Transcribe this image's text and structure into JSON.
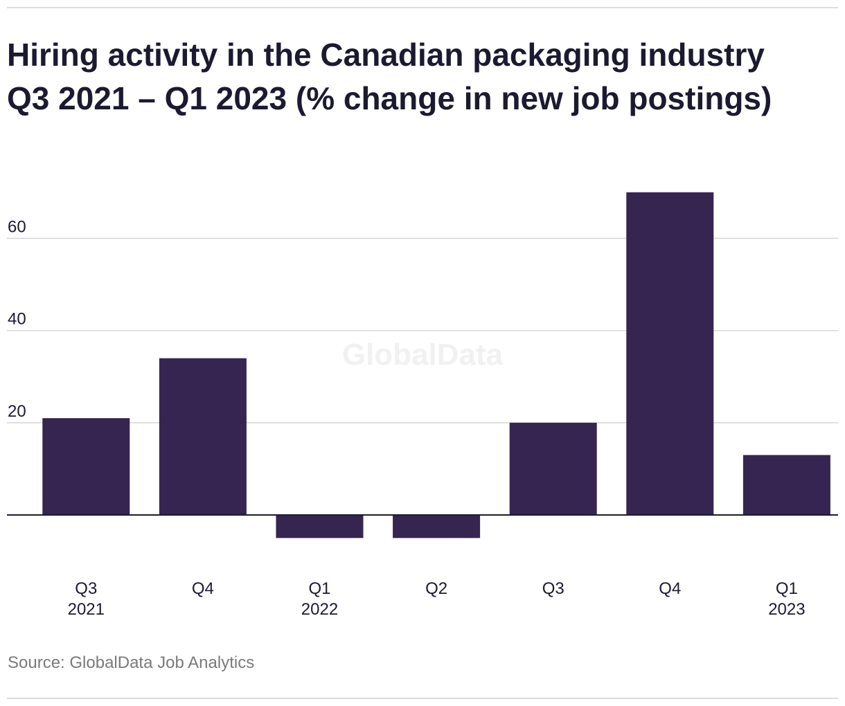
{
  "title_line1": "Hiring activity in the Canadian packaging industry",
  "title_line2": "Q3 2021 – Q1 2023 (% change in new job postings)",
  "watermark": "GlobalData",
  "source": "Source: GlobalData Job Analytics",
  "colors": {
    "bar": "#352550",
    "grid": "#d6d6d6",
    "zero_line": "#1b1a30",
    "tick_text": "#1c1a33",
    "watermark": "#f1f1f1"
  },
  "chart_data": {
    "type": "bar",
    "categories": [
      [
        "Q3",
        "2021"
      ],
      [
        "Q4"
      ],
      [
        "Q1",
        "2022"
      ],
      [
        "Q2"
      ],
      [
        "Q3"
      ],
      [
        "Q4"
      ],
      [
        "Q1",
        "2023"
      ]
    ],
    "values": [
      21,
      34,
      -5,
      -5,
      20,
      70,
      13
    ],
    "y_ticks": [
      "20",
      "40",
      "60"
    ],
    "ylim": [
      -5,
      70
    ],
    "grid": true,
    "legend": "none"
  }
}
